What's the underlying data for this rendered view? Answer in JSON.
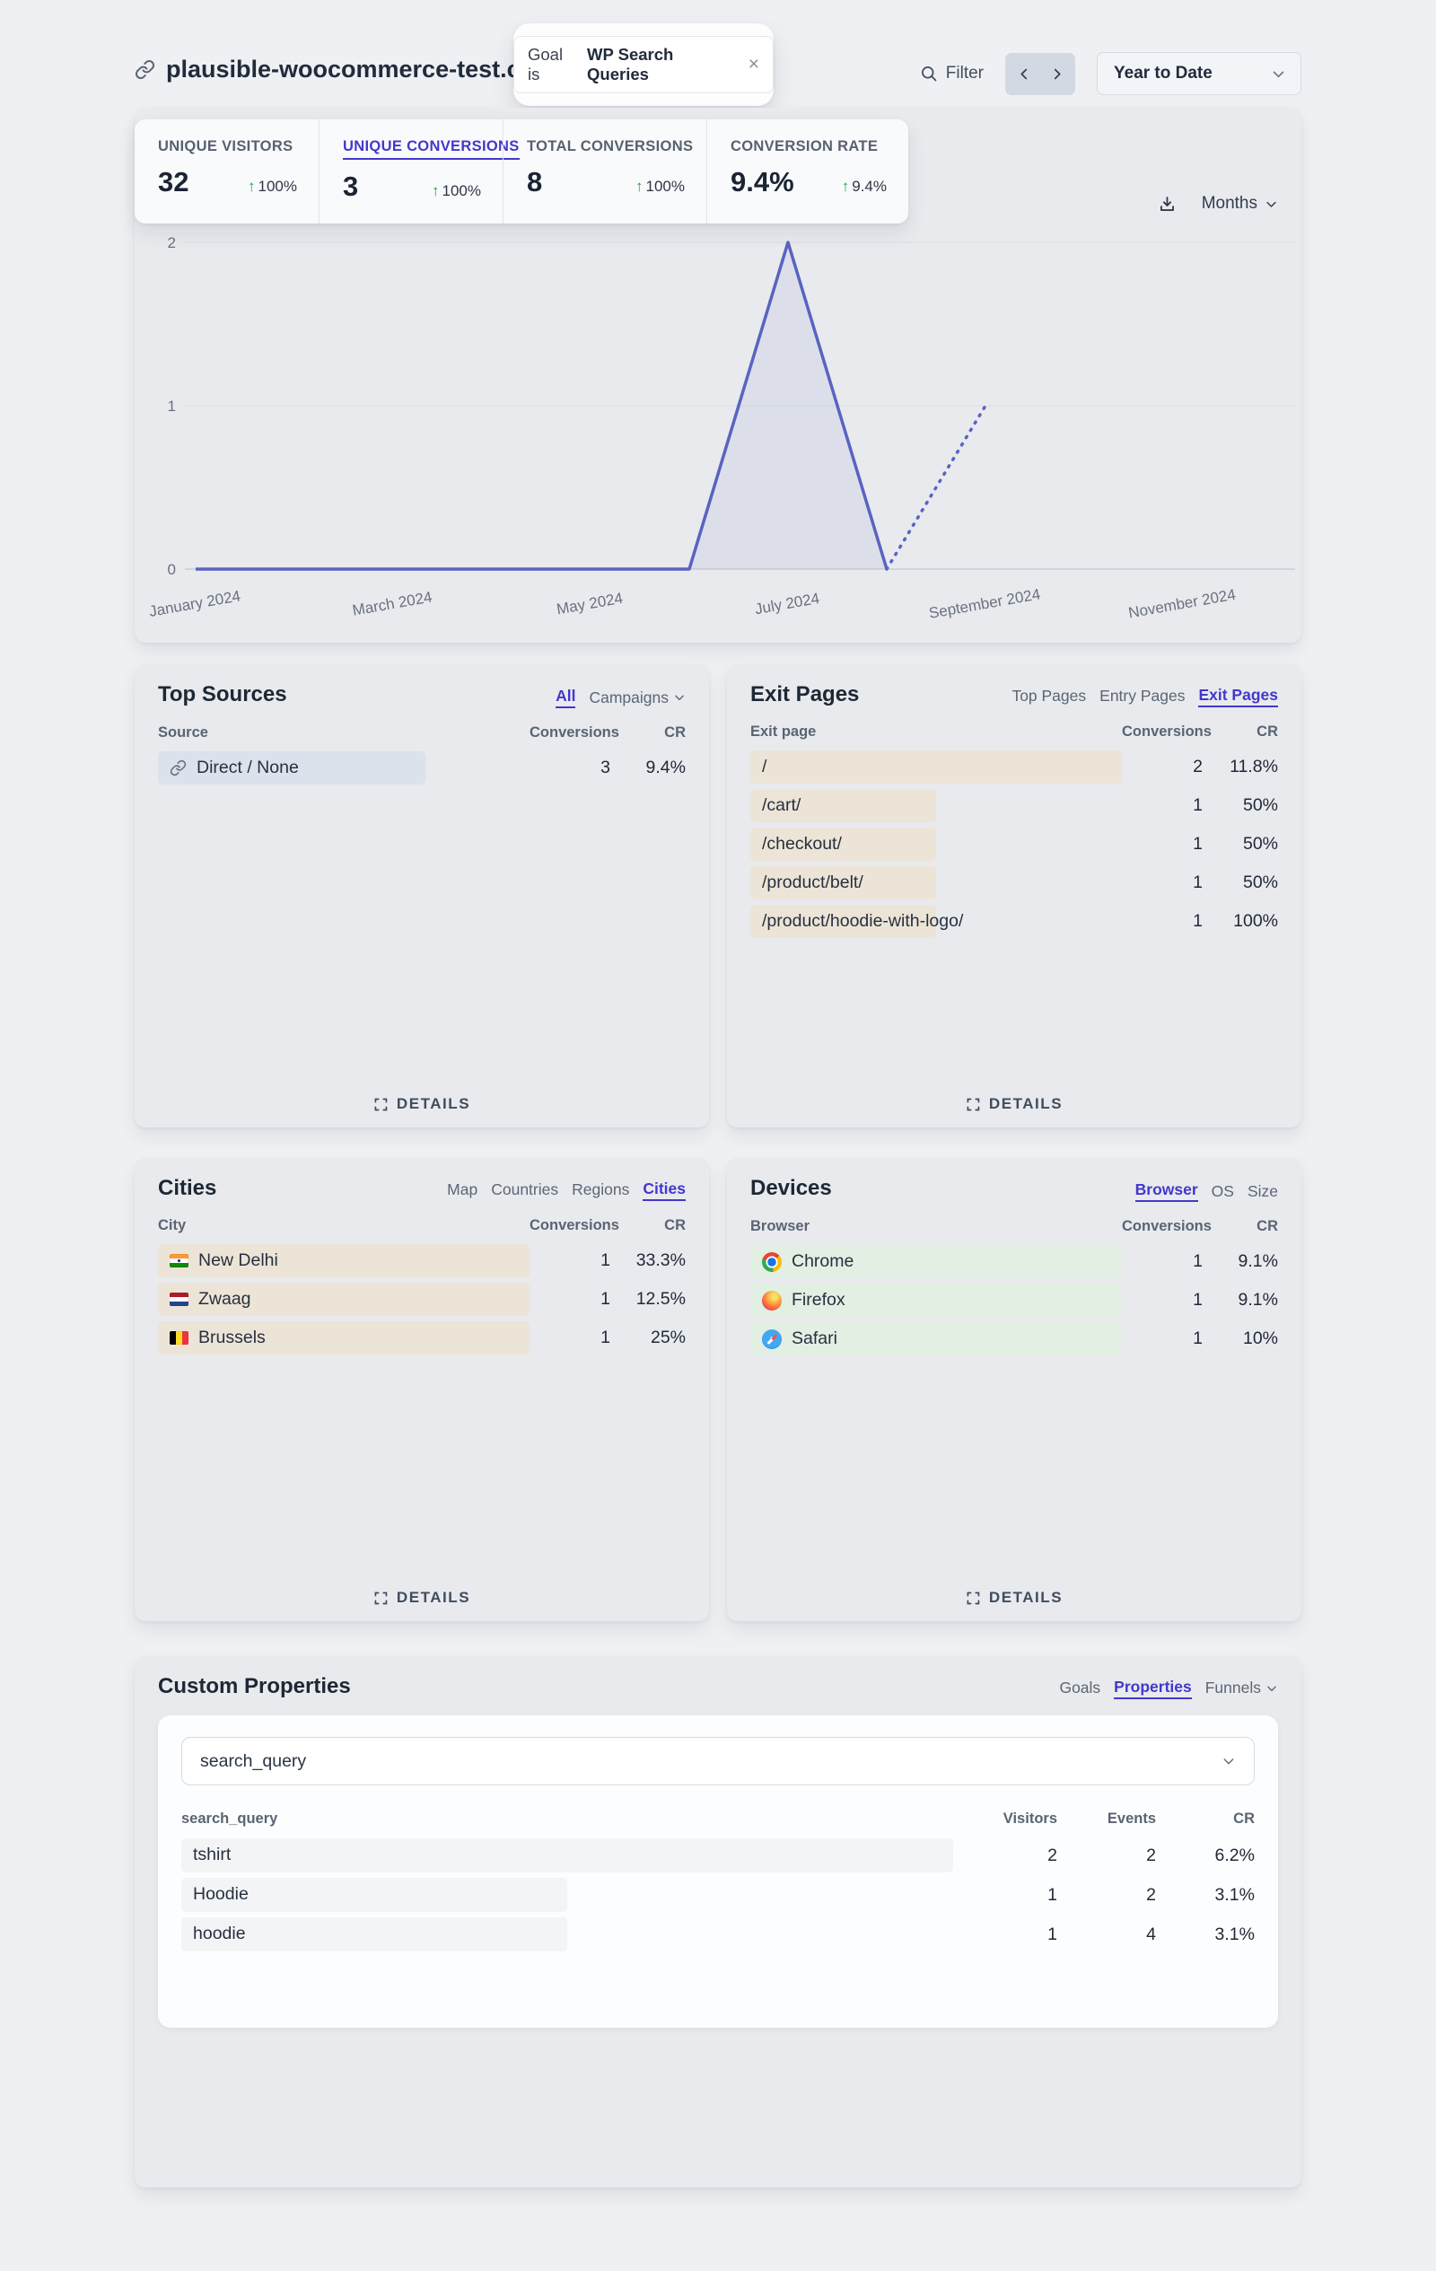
{
  "header": {
    "site": "plausible-woocommerce-test.com",
    "filter_pill": {
      "prefix": "Goal is",
      "value": "WP Search Queries",
      "close": "×"
    },
    "filter_label": "Filter",
    "date_range": "Year to Date"
  },
  "stats": {
    "items": [
      {
        "label": "UNIQUE VISITORS",
        "value": "32",
        "delta": "100%"
      },
      {
        "label": "UNIQUE CONVERSIONS",
        "value": "3",
        "delta": "100%",
        "active": true
      },
      {
        "label": "TOTAL CONVERSIONS",
        "value": "8",
        "delta": "100%"
      },
      {
        "label": "CONVERSION RATE",
        "value": "9.4%",
        "delta": "9.4%"
      }
    ]
  },
  "chart": {
    "interval_label": "Months"
  },
  "chart_data": {
    "type": "line",
    "series_name": "Unique Conversions",
    "x": [
      "January 2024",
      "February 2024",
      "March 2024",
      "April 2024",
      "May 2024",
      "June 2024",
      "July 2024",
      "August 2024",
      "September 2024",
      "October 2024",
      "November 2024",
      "December 2024"
    ],
    "values": [
      0,
      0,
      0,
      0,
      0,
      0,
      2,
      0,
      1
    ],
    "dashed_from_index": 7,
    "ylim": [
      0,
      2
    ],
    "yticks": [
      0,
      1,
      2
    ],
    "x_tick_indices": [
      0,
      2,
      4,
      6,
      8,
      10
    ],
    "grid": true,
    "line_color": "#5963c0"
  },
  "panels": {
    "top_sources": {
      "title": "Top Sources",
      "tabs": [
        "All",
        "Campaigns"
      ],
      "active_tab": "All",
      "columns": [
        "Source",
        "Conversions",
        "CR"
      ],
      "rows": [
        {
          "label": "Direct / None",
          "conversions": "3",
          "cr": "9.4%",
          "bar_pct": 72
        }
      ],
      "details": "DETAILS"
    },
    "exit_pages": {
      "title": "Exit Pages",
      "tabs": [
        "Top Pages",
        "Entry Pages",
        "Exit Pages"
      ],
      "active_tab": "Exit Pages",
      "columns": [
        "Exit page",
        "Conversions",
        "CR"
      ],
      "rows": [
        {
          "label": "/",
          "conversions": "2",
          "cr": "11.8%",
          "bar_pct": 100
        },
        {
          "label": "/cart/",
          "conversions": "1",
          "cr": "50%",
          "bar_pct": 50
        },
        {
          "label": "/checkout/",
          "conversions": "1",
          "cr": "50%",
          "bar_pct": 50
        },
        {
          "label": "/product/belt/",
          "conversions": "1",
          "cr": "50%",
          "bar_pct": 50
        },
        {
          "label": "/product/hoodie-with-logo/",
          "conversions": "1",
          "cr": "100%",
          "bar_pct": 50
        }
      ],
      "details": "DETAILS"
    },
    "cities": {
      "title": "Cities",
      "tabs": [
        "Map",
        "Countries",
        "Regions",
        "Cities"
      ],
      "active_tab": "Cities",
      "columns": [
        "City",
        "Conversions",
        "CR"
      ],
      "rows": [
        {
          "label": "New Delhi",
          "flag": "india",
          "conversions": "1",
          "cr": "33.3%",
          "bar_pct": 100
        },
        {
          "label": "Zwaag",
          "flag": "netherlands",
          "conversions": "1",
          "cr": "12.5%",
          "bar_pct": 100
        },
        {
          "label": "Brussels",
          "flag": "belgium",
          "conversions": "1",
          "cr": "25%",
          "bar_pct": 100
        }
      ],
      "details": "DETAILS"
    },
    "devices": {
      "title": "Devices",
      "tabs": [
        "Browser",
        "OS",
        "Size"
      ],
      "active_tab": "Browser",
      "columns": [
        "Browser",
        "Conversions",
        "CR"
      ],
      "rows": [
        {
          "label": "Chrome",
          "icon": "chrome",
          "conversions": "1",
          "cr": "9.1%",
          "bar_pct": 100
        },
        {
          "label": "Firefox",
          "icon": "firefox",
          "conversions": "1",
          "cr": "9.1%",
          "bar_pct": 100
        },
        {
          "label": "Safari",
          "icon": "safari",
          "conversions": "1",
          "cr": "10%",
          "bar_pct": 100
        }
      ],
      "details": "DETAILS"
    },
    "custom_properties": {
      "title": "Custom Properties",
      "tabs": [
        "Goals",
        "Properties",
        "Funnels"
      ],
      "active_tab": "Properties",
      "select_value": "search_query",
      "columns": [
        "search_query",
        "Visitors",
        "Events",
        "CR"
      ],
      "rows": [
        {
          "label": "tshirt",
          "visitors": "2",
          "events": "2",
          "cr": "6.2%",
          "bar_pct": 100
        },
        {
          "label": "Hoodie",
          "visitors": "1",
          "events": "2",
          "cr": "3.1%",
          "bar_pct": 50
        },
        {
          "label": "hoodie",
          "visitors": "1",
          "events": "4",
          "cr": "3.1%",
          "bar_pct": 50
        }
      ]
    }
  },
  "colors": {
    "accent_purple": "#4338ca",
    "chart_line": "#5963c0",
    "delta_green": "#16a34a",
    "bar_blue": "#dce2eb",
    "bar_tan": "#ece4d6",
    "bar_green": "#e2efe3",
    "bar_gray": "#f3f4f6",
    "panel_bg": "#e8eaee",
    "page_bg": "#eef0f3"
  }
}
